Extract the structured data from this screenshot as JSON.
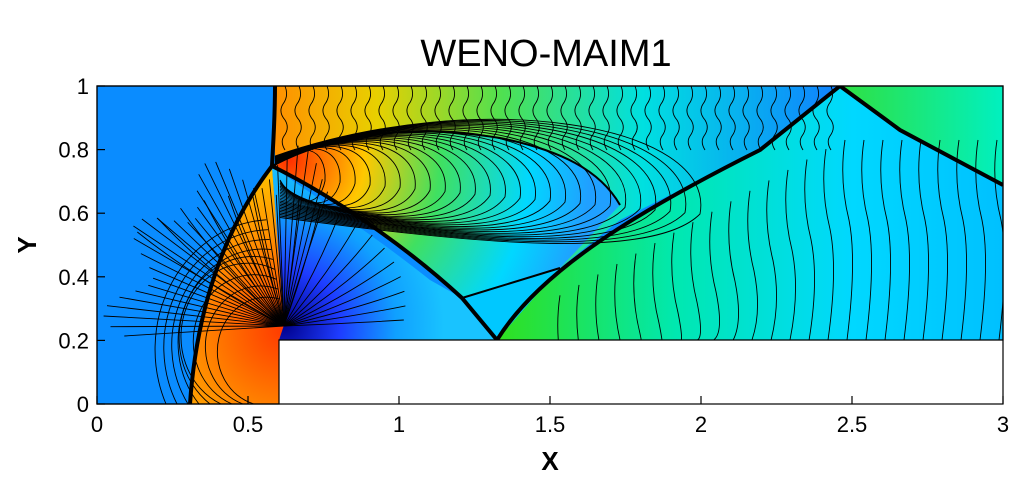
{
  "chart_data": {
    "type": "heatmap",
    "title": "WENO-MAIM1",
    "xlabel": "X",
    "ylabel": "Y",
    "xlim": [
      0,
      3
    ],
    "ylim": [
      0,
      1
    ],
    "x_ticks": [
      {
        "value": 0,
        "label": "0"
      },
      {
        "value": 0.5,
        "label": "0.5"
      },
      {
        "value": 1,
        "label": "1"
      },
      {
        "value": 1.5,
        "label": "1.5"
      },
      {
        "value": 2,
        "label": "2"
      },
      {
        "value": 2.5,
        "label": "2.5"
      },
      {
        "value": 3,
        "label": "3"
      }
    ],
    "y_ticks": [
      {
        "value": 0,
        "label": "0"
      },
      {
        "value": 0.2,
        "label": "0.2"
      },
      {
        "value": 0.4,
        "label": "0.4"
      },
      {
        "value": 0.6,
        "label": "0.6"
      },
      {
        "value": 0.8,
        "label": "0.8"
      },
      {
        "value": 1,
        "label": "1"
      }
    ],
    "step": {
      "x_start": 0.6,
      "x_end": 3,
      "y_top": 0.2
    },
    "colormap": [
      "#0000a0",
      "#0066ff",
      "#00c8ff",
      "#00e4c8",
      "#40e040",
      "#b4e400",
      "#ffc800",
      "#ff8c00",
      "#ff3000"
    ],
    "grid": false,
    "legend": "none"
  }
}
